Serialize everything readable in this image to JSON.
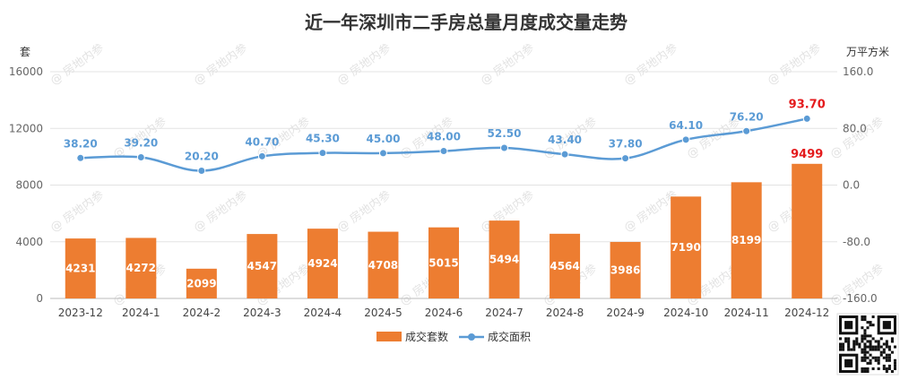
{
  "chart_data": {
    "type": "bar",
    "title": "近一年深圳市二手房总量月度成交量走势",
    "left_unit": "套",
    "right_unit": "万平方米",
    "categories": [
      "2023-12",
      "2024-1",
      "2024-2",
      "2024-3",
      "2024-4",
      "2024-5",
      "2024-6",
      "2024-7",
      "2024-8",
      "2024-9",
      "2024-10",
      "2024-11",
      "2024-12"
    ],
    "series": [
      {
        "name": "成交套数",
        "type": "bar",
        "axis": "left",
        "color": "#ed7d31",
        "values": [
          4231,
          4272,
          2099,
          4547,
          4924,
          4708,
          5015,
          5494,
          4564,
          3986,
          7190,
          8199,
          9499
        ],
        "labels": [
          "4231",
          "4272",
          "2099",
          "4547",
          "4924",
          "4708",
          "5015",
          "5494",
          "4564",
          "3986",
          "7190",
          "8199",
          "9499"
        ]
      },
      {
        "name": "成交面积",
        "type": "line",
        "axis": "right",
        "color": "#5b9bd5",
        "values": [
          38.2,
          39.2,
          20.2,
          40.7,
          45.3,
          45.0,
          48.0,
          52.5,
          43.4,
          37.8,
          64.1,
          76.2,
          93.7
        ],
        "labels": [
          "38.20",
          "39.20",
          "20.20",
          "40.70",
          "45.30",
          "45.00",
          "48.00",
          "52.50",
          "43.40",
          "37.80",
          "64.10",
          "76.20",
          "93.70"
        ]
      }
    ],
    "left_axis": {
      "ylim": [
        0,
        16000
      ],
      "ticks": [
        "0",
        "4000",
        "8000",
        "12000",
        "16000"
      ]
    },
    "right_axis": {
      "ylim": [
        -160,
        160
      ],
      "ticks": [
        "-160.0",
        "-80.0",
        "0.0",
        "80.0",
        "160.0"
      ]
    },
    "highlight_color": "#e41a1c",
    "grid": true,
    "legend_position": "bottom-center"
  },
  "watermark": "房地内参"
}
